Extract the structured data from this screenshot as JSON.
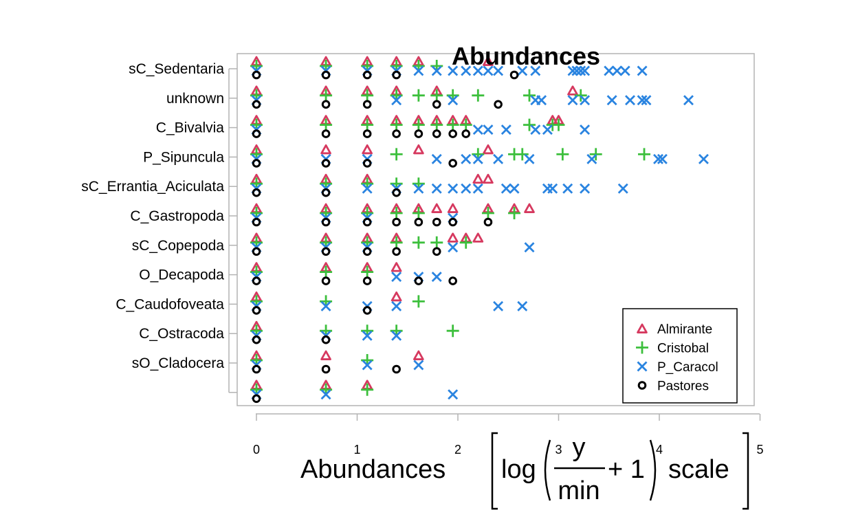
{
  "chart_data": {
    "type": "scatter",
    "title": "Abundances",
    "xlabel": {
      "word": "Abundances",
      "log": "log",
      "numerator": "y",
      "denominator": "min",
      "plus_one": "+ 1",
      "scale": "scale"
    },
    "xlim": [
      0,
      5
    ],
    "xticks": [
      "0",
      "1",
      "2",
      "3",
      "4",
      "5"
    ],
    "categories": [
      "sC_Sedentaria",
      "unknown",
      "C_Bivalvia",
      "P_Sipuncula",
      "sC_Errantia_Aciculata",
      "C_Gastropoda",
      "sC_Copepoda",
      "O_Decapoda",
      "C_Caudofoveata",
      "C_Ostracoda",
      "sO_Cladocera",
      ""
    ],
    "legend_position": "bottom-right",
    "series": [
      {
        "name": "Almirante",
        "marker": "triangle",
        "color": "#d6395f",
        "points": [
          [
            0,
            0
          ],
          [
            0.69,
            0
          ],
          [
            1.1,
            0
          ],
          [
            1.39,
            0
          ],
          [
            1.61,
            0
          ],
          [
            2.3,
            0
          ],
          [
            0,
            1
          ],
          [
            0.69,
            1
          ],
          [
            1.1,
            1
          ],
          [
            1.39,
            1
          ],
          [
            1.79,
            1
          ],
          [
            3.14,
            1
          ],
          [
            0,
            2
          ],
          [
            0.69,
            2
          ],
          [
            1.1,
            2
          ],
          [
            1.39,
            2
          ],
          [
            1.61,
            2
          ],
          [
            1.79,
            2
          ],
          [
            1.95,
            2
          ],
          [
            2.08,
            2
          ],
          [
            2.94,
            2
          ],
          [
            3.0,
            2
          ],
          [
            0,
            3
          ],
          [
            0.69,
            3
          ],
          [
            1.1,
            3
          ],
          [
            1.61,
            3
          ],
          [
            2.3,
            3
          ],
          [
            0,
            4
          ],
          [
            0.69,
            4
          ],
          [
            1.1,
            4
          ],
          [
            2.2,
            4
          ],
          [
            2.3,
            4
          ],
          [
            0,
            5
          ],
          [
            0.69,
            5
          ],
          [
            1.1,
            5
          ],
          [
            1.39,
            5
          ],
          [
            1.61,
            5
          ],
          [
            1.79,
            5
          ],
          [
            1.95,
            5
          ],
          [
            2.3,
            5
          ],
          [
            2.56,
            5
          ],
          [
            2.71,
            5
          ],
          [
            0,
            6
          ],
          [
            0.69,
            6
          ],
          [
            1.1,
            6
          ],
          [
            1.39,
            6
          ],
          [
            1.95,
            6
          ],
          [
            2.08,
            6
          ],
          [
            2.2,
            6
          ],
          [
            0,
            7
          ],
          [
            0.69,
            7
          ],
          [
            1.1,
            7
          ],
          [
            1.39,
            7
          ],
          [
            0,
            8
          ],
          [
            1.39,
            8
          ],
          [
            0,
            9
          ],
          [
            0,
            10
          ],
          [
            0.69,
            10
          ],
          [
            1.61,
            10
          ],
          [
            0,
            11
          ],
          [
            0.69,
            11
          ],
          [
            1.1,
            11
          ]
        ]
      },
      {
        "name": "Cristobal",
        "marker": "plus",
        "color": "#3cbf3c",
        "points": [
          [
            0,
            0
          ],
          [
            0.69,
            0
          ],
          [
            1.1,
            0
          ],
          [
            1.39,
            0
          ],
          [
            1.61,
            0
          ],
          [
            1.79,
            0
          ],
          [
            0,
            1
          ],
          [
            0.69,
            1
          ],
          [
            1.1,
            1
          ],
          [
            1.39,
            1
          ],
          [
            1.61,
            1
          ],
          [
            1.79,
            1
          ],
          [
            1.95,
            1
          ],
          [
            2.2,
            1
          ],
          [
            2.71,
            1
          ],
          [
            3.22,
            1
          ],
          [
            0,
            2
          ],
          [
            0.69,
            2
          ],
          [
            1.1,
            2
          ],
          [
            1.39,
            2
          ],
          [
            1.61,
            2
          ],
          [
            1.79,
            2
          ],
          [
            1.95,
            2
          ],
          [
            2.08,
            2
          ],
          [
            2.71,
            2
          ],
          [
            2.94,
            2
          ],
          [
            3.0,
            2
          ],
          [
            0,
            3
          ],
          [
            1.39,
            3
          ],
          [
            2.2,
            3
          ],
          [
            2.56,
            3
          ],
          [
            2.64,
            3
          ],
          [
            3.04,
            3
          ],
          [
            3.37,
            3
          ],
          [
            3.85,
            3
          ],
          [
            0,
            4
          ],
          [
            0.69,
            4
          ],
          [
            1.1,
            4
          ],
          [
            1.39,
            4
          ],
          [
            1.61,
            4
          ],
          [
            0,
            5
          ],
          [
            0.69,
            5
          ],
          [
            1.1,
            5
          ],
          [
            1.39,
            5
          ],
          [
            1.61,
            5
          ],
          [
            2.3,
            5
          ],
          [
            2.56,
            5
          ],
          [
            0,
            6
          ],
          [
            0.69,
            6
          ],
          [
            1.1,
            6
          ],
          [
            1.39,
            6
          ],
          [
            1.61,
            6
          ],
          [
            1.79,
            6
          ],
          [
            2.08,
            6
          ],
          [
            0,
            7
          ],
          [
            0.69,
            7
          ],
          [
            1.1,
            7
          ],
          [
            0,
            8
          ],
          [
            0.69,
            8
          ],
          [
            1.61,
            8
          ],
          [
            0,
            9
          ],
          [
            0.69,
            9
          ],
          [
            1.1,
            9
          ],
          [
            1.39,
            9
          ],
          [
            1.95,
            9
          ],
          [
            0,
            10
          ],
          [
            1.1,
            10
          ],
          [
            0,
            11
          ],
          [
            0.69,
            11
          ],
          [
            1.1,
            11
          ]
        ]
      },
      {
        "name": "P_Caracol",
        "marker": "cross",
        "color": "#2a84e0",
        "points": [
          [
            0,
            0
          ],
          [
            0.69,
            0
          ],
          [
            1.1,
            0
          ],
          [
            1.39,
            0
          ],
          [
            1.61,
            0
          ],
          [
            1.79,
            0
          ],
          [
            1.95,
            0
          ],
          [
            2.08,
            0
          ],
          [
            2.2,
            0
          ],
          [
            2.3,
            0
          ],
          [
            2.4,
            0
          ],
          [
            2.64,
            0
          ],
          [
            2.77,
            0
          ],
          [
            3.14,
            0
          ],
          [
            3.18,
            0
          ],
          [
            3.22,
            0
          ],
          [
            3.26,
            0
          ],
          [
            3.5,
            0
          ],
          [
            3.58,
            0
          ],
          [
            3.66,
            0
          ],
          [
            3.83,
            0
          ],
          [
            0,
            1
          ],
          [
            1.39,
            1
          ],
          [
            1.95,
            1
          ],
          [
            2.77,
            1
          ],
          [
            2.83,
            1
          ],
          [
            3.14,
            1
          ],
          [
            3.26,
            1
          ],
          [
            3.53,
            1
          ],
          [
            3.71,
            1
          ],
          [
            3.83,
            1
          ],
          [
            3.87,
            1
          ],
          [
            4.29,
            1
          ],
          [
            0,
            2
          ],
          [
            2.2,
            2
          ],
          [
            2.3,
            2
          ],
          [
            2.48,
            2
          ],
          [
            2.77,
            2
          ],
          [
            2.89,
            2
          ],
          [
            3.26,
            2
          ],
          [
            0,
            3
          ],
          [
            0.69,
            3
          ],
          [
            1.1,
            3
          ],
          [
            1.79,
            3
          ],
          [
            2.08,
            3
          ],
          [
            2.2,
            3
          ],
          [
            2.4,
            3
          ],
          [
            2.71,
            3
          ],
          [
            3.33,
            3
          ],
          [
            3.99,
            3
          ],
          [
            4.03,
            3
          ],
          [
            4.44,
            3
          ],
          [
            0,
            4
          ],
          [
            0.69,
            4
          ],
          [
            1.1,
            4
          ],
          [
            1.39,
            4
          ],
          [
            1.61,
            4
          ],
          [
            1.79,
            4
          ],
          [
            1.95,
            4
          ],
          [
            2.08,
            4
          ],
          [
            2.2,
            4
          ],
          [
            2.48,
            4
          ],
          [
            2.56,
            4
          ],
          [
            2.89,
            4
          ],
          [
            2.94,
            4
          ],
          [
            3.09,
            4
          ],
          [
            3.26,
            4
          ],
          [
            3.64,
            4
          ],
          [
            0,
            5
          ],
          [
            0.69,
            5
          ],
          [
            1.1,
            5
          ],
          [
            1.95,
            5
          ],
          [
            0,
            6
          ],
          [
            0.69,
            6
          ],
          [
            1.1,
            6
          ],
          [
            1.95,
            6
          ],
          [
            2.71,
            6
          ],
          [
            0,
            7
          ],
          [
            1.39,
            7
          ],
          [
            1.61,
            7
          ],
          [
            1.79,
            7
          ],
          [
            0,
            8
          ],
          [
            0.69,
            8
          ],
          [
            1.1,
            8
          ],
          [
            1.39,
            8
          ],
          [
            2.4,
            8
          ],
          [
            2.64,
            8
          ],
          [
            0,
            9
          ],
          [
            0.69,
            9
          ],
          [
            1.1,
            9
          ],
          [
            1.39,
            9
          ],
          [
            0,
            10
          ],
          [
            1.1,
            10
          ],
          [
            1.61,
            10
          ],
          [
            0,
            11
          ],
          [
            0.69,
            11
          ],
          [
            1.95,
            11
          ]
        ]
      },
      {
        "name": "Pastores",
        "marker": "circle",
        "color": "#000000",
        "points": [
          [
            0,
            0
          ],
          [
            0.69,
            0
          ],
          [
            1.1,
            0
          ],
          [
            1.39,
            0
          ],
          [
            2.56,
            0
          ],
          [
            0,
            1
          ],
          [
            0.69,
            1
          ],
          [
            1.1,
            1
          ],
          [
            1.79,
            1
          ],
          [
            2.4,
            1
          ],
          [
            0,
            2
          ],
          [
            0.69,
            2
          ],
          [
            1.1,
            2
          ],
          [
            1.39,
            2
          ],
          [
            1.61,
            2
          ],
          [
            1.79,
            2
          ],
          [
            1.95,
            2
          ],
          [
            2.08,
            2
          ],
          [
            0,
            3
          ],
          [
            0.69,
            3
          ],
          [
            1.1,
            3
          ],
          [
            1.95,
            3
          ],
          [
            0,
            4
          ],
          [
            0.69,
            4
          ],
          [
            1.39,
            4
          ],
          [
            0,
            5
          ],
          [
            0.69,
            5
          ],
          [
            1.1,
            5
          ],
          [
            1.39,
            5
          ],
          [
            1.61,
            5
          ],
          [
            1.79,
            5
          ],
          [
            1.95,
            5
          ],
          [
            2.3,
            5
          ],
          [
            0,
            6
          ],
          [
            0.69,
            6
          ],
          [
            1.1,
            6
          ],
          [
            1.39,
            6
          ],
          [
            1.79,
            6
          ],
          [
            0,
            7
          ],
          [
            0.69,
            7
          ],
          [
            1.1,
            7
          ],
          [
            1.61,
            7
          ],
          [
            1.95,
            7
          ],
          [
            0,
            8
          ],
          [
            1.1,
            8
          ],
          [
            0,
            9
          ],
          [
            0.69,
            9
          ],
          [
            0,
            10
          ],
          [
            0.69,
            10
          ],
          [
            1.39,
            10
          ],
          [
            0,
            11
          ]
        ]
      }
    ]
  }
}
